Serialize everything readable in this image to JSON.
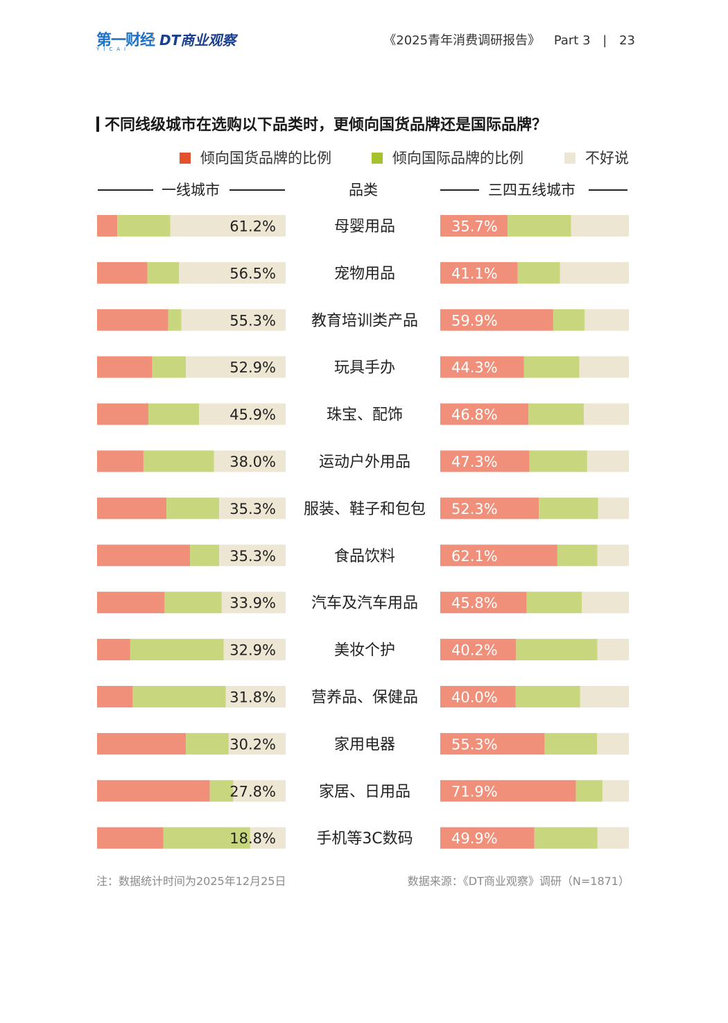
{
  "header": {
    "logo_left": "第一财经",
    "logo_left_sub": "YICAI",
    "logo_right": "DT商业观察",
    "report_title": "《2025青年消费调研报告》",
    "part": "Part 3",
    "page": "23"
  },
  "colors": {
    "domestic": "#f0907a",
    "international": "#c8d77d",
    "unsure": "#ede6d2",
    "legend_domestic": "#e5502f",
    "legend_international": "#a5c22a",
    "legend_unsure": "#ede6d2"
  },
  "legend": {
    "domestic": "倾向国货品牌的比例",
    "international": "倾向国际品牌的比例",
    "unsure": "不好说"
  },
  "columns": {
    "left": "一线城市",
    "middle": "品类",
    "right": "三四五线城市"
  },
  "footer": {
    "note": "注：数据统计时间为2025年12月25日",
    "source": "数据来源：《DT商业观察》调研（N=1871）"
  },
  "chart_data": {
    "type": "bar",
    "title": "不同线级城市在选购以下品类时，更倾向国货品牌还是国际品牌？",
    "stacked": true,
    "unit": "%",
    "categories": [
      "母婴用品",
      "宠物用品",
      "教育培训类产品",
      "玩具手办",
      "珠宝、配饰",
      "运动户外用品",
      "服装、鞋子和包包",
      "食品饮料",
      "汽车及汽车用品",
      "美妆个护",
      "营养品、保健品",
      "家用电器",
      "家居、日用品",
      "手机等3C数码"
    ],
    "panels": [
      {
        "name": "一线城市",
        "labelled_series": "不好说",
        "labels": [
          "61.2%",
          "56.5%",
          "55.3%",
          "52.9%",
          "45.9%",
          "38.0%",
          "35.3%",
          "35.3%",
          "33.9%",
          "32.9%",
          "31.8%",
          "30.2%",
          "27.8%",
          "18.8%"
        ],
        "series": [
          {
            "name": "倾向国货品牌的比例",
            "values": [
              10.7,
              26.7,
              37.7,
              29.2,
              27.2,
              24.6,
              36.8,
              49.3,
              35.8,
              17.6,
              18.9,
              47.1,
              59.8,
              35.2
            ]
          },
          {
            "name": "倾向国际品牌的比例",
            "values": [
              28.1,
              16.8,
              7.0,
              17.9,
              26.9,
              37.4,
              27.9,
              15.4,
              30.3,
              49.5,
              49.3,
              22.7,
              12.4,
              46.0
            ]
          },
          {
            "name": "不好说",
            "values": [
              61.2,
              56.5,
              55.3,
              52.9,
              45.9,
              38.0,
              35.3,
              35.3,
              33.9,
              32.9,
              31.8,
              30.2,
              27.8,
              18.8
            ]
          }
        ]
      },
      {
        "name": "三四五线城市",
        "labelled_series": "倾向国货品牌的比例",
        "labels": [
          "35.7%",
          "41.1%",
          "59.9%",
          "44.3%",
          "46.8%",
          "47.3%",
          "52.3%",
          "62.1%",
          "45.8%",
          "40.2%",
          "40.0%",
          "55.3%",
          "71.9%",
          "49.9%"
        ],
        "series": [
          {
            "name": "倾向国货品牌的比例",
            "values": [
              35.7,
              41.1,
              59.9,
              44.3,
              46.8,
              47.3,
              52.3,
              62.1,
              45.8,
              40.2,
              40.0,
              55.3,
              71.9,
              49.9
            ]
          },
          {
            "name": "倾向国际品牌的比例",
            "values": [
              33.7,
              22.4,
              16.7,
              29.4,
              29.3,
              30.6,
              31.4,
              21.2,
              29.3,
              43.1,
              34.2,
              27.9,
              14.1,
              33.5
            ]
          },
          {
            "name": "不好说",
            "values": [
              30.6,
              36.5,
              23.4,
              26.3,
              23.9,
              22.1,
              16.3,
              16.7,
              24.9,
              16.7,
              25.8,
              16.8,
              14.0,
              16.6
            ]
          }
        ]
      }
    ]
  }
}
